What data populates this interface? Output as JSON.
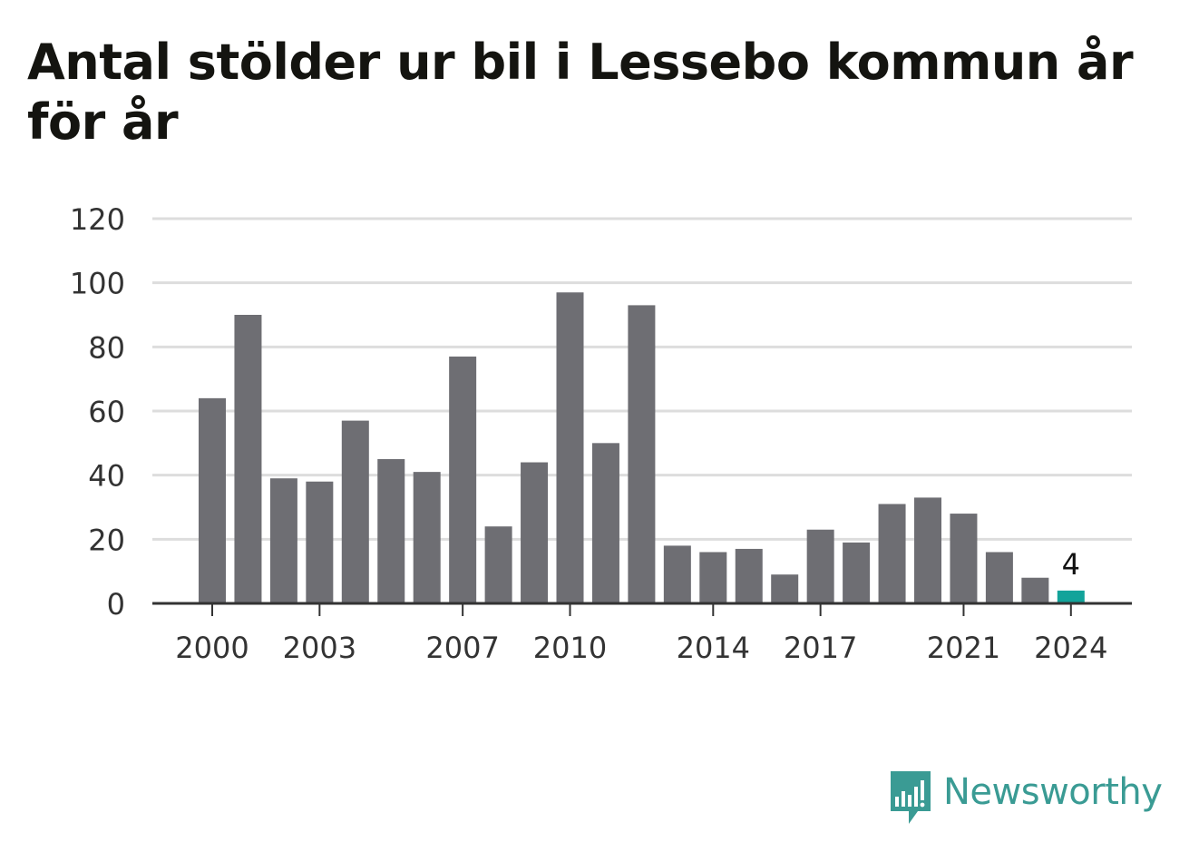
{
  "title": "Antal stölder ur bil i Lessebo kommun år för år",
  "colors": {
    "bar": "#6e6e73",
    "highlight": "#12a39a",
    "grid": "#dddddd",
    "axis": "#333333",
    "brand": "#3a9b94"
  },
  "branding": {
    "name": "Newsworthy",
    "icon": "newsworthy-logo-icon"
  },
  "chart_data": {
    "type": "bar",
    "title": "Antal stölder ur bil i Lessebo kommun år för år",
    "xlabel": "",
    "ylabel": "",
    "categories": [
      2000,
      2001,
      2002,
      2003,
      2004,
      2005,
      2006,
      2007,
      2008,
      2009,
      2010,
      2011,
      2012,
      2013,
      2014,
      2015,
      2016,
      2017,
      2018,
      2019,
      2020,
      2021,
      2022,
      2023,
      2024
    ],
    "values": [
      64,
      90,
      39,
      38,
      57,
      45,
      41,
      77,
      24,
      44,
      97,
      50,
      93,
      18,
      16,
      17,
      9,
      23,
      19,
      31,
      33,
      28,
      16,
      8,
      4
    ],
    "x_tick_labels": [
      "2000",
      "2003",
      "2007",
      "2010",
      "2014",
      "2017",
      "2021",
      "2024"
    ],
    "y_ticks": [
      0,
      20,
      40,
      60,
      80,
      100,
      120
    ],
    "ylim": [
      0,
      120
    ],
    "grid": true,
    "highlight_category": 2024,
    "annotations": [
      {
        "category": 2024,
        "text": "4"
      }
    ]
  }
}
